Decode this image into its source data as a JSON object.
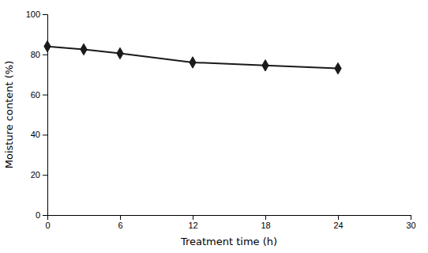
{
  "chart_data": {
    "type": "line",
    "x": [
      0,
      3,
      6,
      12,
      18,
      24
    ],
    "values": [
      84.0,
      82.5,
      80.5,
      76.0,
      74.5,
      73.0
    ],
    "xlim": [
      0,
      30
    ],
    "ylim": [
      0,
      100
    ],
    "xticks": [
      0,
      6,
      12,
      18,
      24,
      30
    ],
    "yticks": [
      0,
      20,
      40,
      60,
      80,
      100
    ],
    "xlabel": "Treatment time (h)",
    "ylabel": "Moisture content (%)",
    "color": "#1a1a1a",
    "marker": "diamond"
  }
}
